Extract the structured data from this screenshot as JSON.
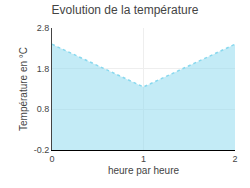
{
  "chart_data": {
    "type": "area",
    "title": "Evolution de la température",
    "xlabel": "heure par heure",
    "ylabel": "Température en °C",
    "x": [
      0,
      1,
      2
    ],
    "series": [
      {
        "values": [
          2.4,
          1.35,
          2.4
        ],
        "color": "#88d8ee",
        "line_style": "dotted"
      }
    ],
    "xlim": [
      0,
      2
    ],
    "ylim": [
      -0.2,
      2.8
    ],
    "xticks": [
      0,
      1,
      2
    ],
    "yticks": [
      -0.2,
      0.8,
      1.8,
      2.8
    ],
    "grid": true
  }
}
